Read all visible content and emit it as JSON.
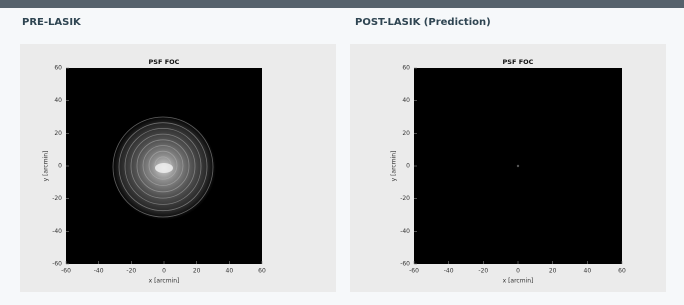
{
  "chart_data": [
    {
      "type": "image",
      "heading": "PRE-LASIK",
      "title": "PSF FOC",
      "xlabel": "x [arcmin]",
      "ylabel": "y [arcmin]",
      "xlim": [
        -60,
        60
      ],
      "ylim": [
        -60,
        60
      ],
      "xticks": [
        -60,
        -40,
        -20,
        0,
        20,
        40,
        60
      ],
      "yticks": [
        -60,
        -40,
        -20,
        0,
        20,
        40,
        60
      ]
    },
    {
      "type": "image",
      "heading": "POST-LASIK (Prediction)",
      "title": "PSF FOC",
      "xlabel": "x [arcmin]",
      "ylabel": "y [arcmin]",
      "xlim": [
        -60,
        60
      ],
      "ylim": [
        -60,
        60
      ],
      "xticks": [
        -60,
        -40,
        -20,
        0,
        20,
        40,
        60
      ],
      "yticks": [
        -60,
        -40,
        -20,
        0,
        20,
        40,
        60
      ]
    }
  ]
}
